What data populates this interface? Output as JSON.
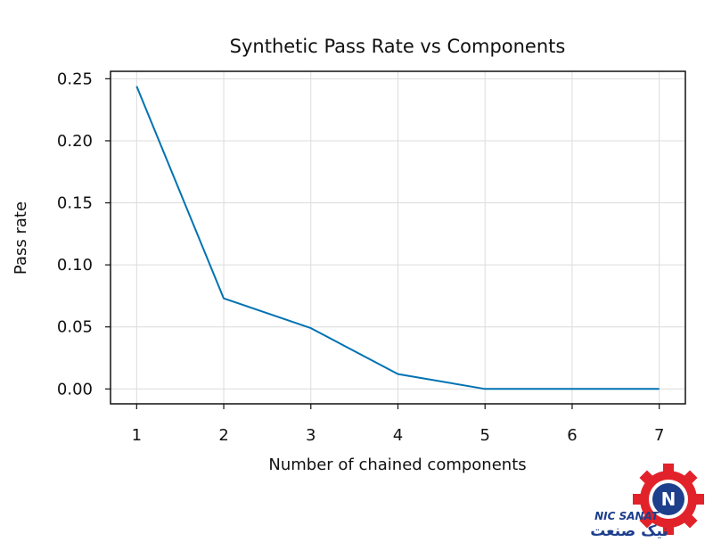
{
  "chart_data": {
    "type": "line",
    "title": "Synthetic Pass Rate vs Components",
    "xlabel": "Number of chained components",
    "ylabel": "Pass rate",
    "x": [
      1,
      2,
      3,
      4,
      5,
      6,
      7
    ],
    "series": [
      {
        "values": [
          0.244,
          0.073,
          0.049,
          0.012,
          0.0,
          0.0,
          0.0
        ],
        "color": "#0072b2"
      }
    ],
    "xticks": [
      "1",
      "2",
      "3",
      "4",
      "5",
      "6",
      "7"
    ],
    "yticks": [
      "0.00",
      "0.05",
      "0.10",
      "0.15",
      "0.20",
      "0.25"
    ],
    "xlim": [
      0.7,
      7.3
    ],
    "ylim": [
      -0.012,
      0.256
    ],
    "grid": true,
    "legend": "none"
  },
  "watermark": {
    "name": "NIC SANAT",
    "name_fa": "نیک صنعت",
    "colors": {
      "gear": "#e2222a",
      "ring": "#1d3f8c"
    }
  }
}
